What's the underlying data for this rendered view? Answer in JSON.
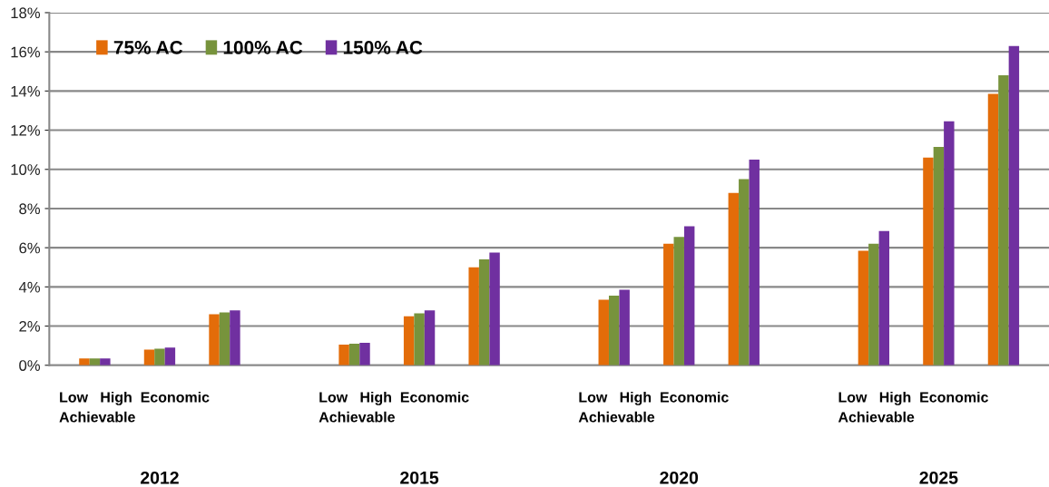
{
  "chart_data": {
    "type": "bar",
    "categories": [
      null,
      null,
      null,
      null,
      null,
      null,
      null,
      null,
      null,
      null,
      null,
      null,
      null,
      null,
      null
    ],
    "series": [
      {
        "name": "75% AC",
        "color": "#e36c09",
        "values": [
          0.35,
          0.8,
          2.6,
          null,
          1.05,
          2.5,
          5.0,
          null,
          3.35,
          6.2,
          8.8,
          null,
          5.85,
          10.6,
          13.85
        ]
      },
      {
        "name": "100% AC",
        "color": "#77933c",
        "values": [
          0.35,
          0.85,
          2.7,
          null,
          1.1,
          2.65,
          5.4,
          null,
          3.55,
          6.55,
          9.5,
          null,
          6.2,
          11.15,
          14.8
        ]
      },
      {
        "name": "150% AC",
        "color": "#7030a0",
        "values": [
          0.35,
          0.9,
          2.8,
          null,
          1.15,
          2.8,
          5.75,
          null,
          3.85,
          7.1,
          10.5,
          null,
          6.85,
          12.45,
          16.3
        ]
      }
    ],
    "ylim": [
      0,
      18
    ],
    "yticks": [
      {
        "value": 0,
        "label": "0%"
      },
      {
        "value": 2,
        "label": "2%"
      },
      {
        "value": 4,
        "label": "4%"
      },
      {
        "value": 6,
        "label": "6%"
      },
      {
        "value": 8,
        "label": "8%"
      },
      {
        "value": 10,
        "label": "10%"
      },
      {
        "value": 12,
        "label": "12%"
      },
      {
        "value": 14,
        "label": "14%"
      },
      {
        "value": 16,
        "label": "16%"
      },
      {
        "value": 18,
        "label": "18%"
      }
    ],
    "grid": "y",
    "legend": "top left",
    "annotations": [
      "Low   High  Economic\nAchievable",
      "Low   High  Economic\nAchievable",
      "Low   High  Economic\nAchievable",
      "Low   High  Economic\nAchievable",
      "2012",
      "2015",
      "2020",
      "2025"
    ]
  }
}
